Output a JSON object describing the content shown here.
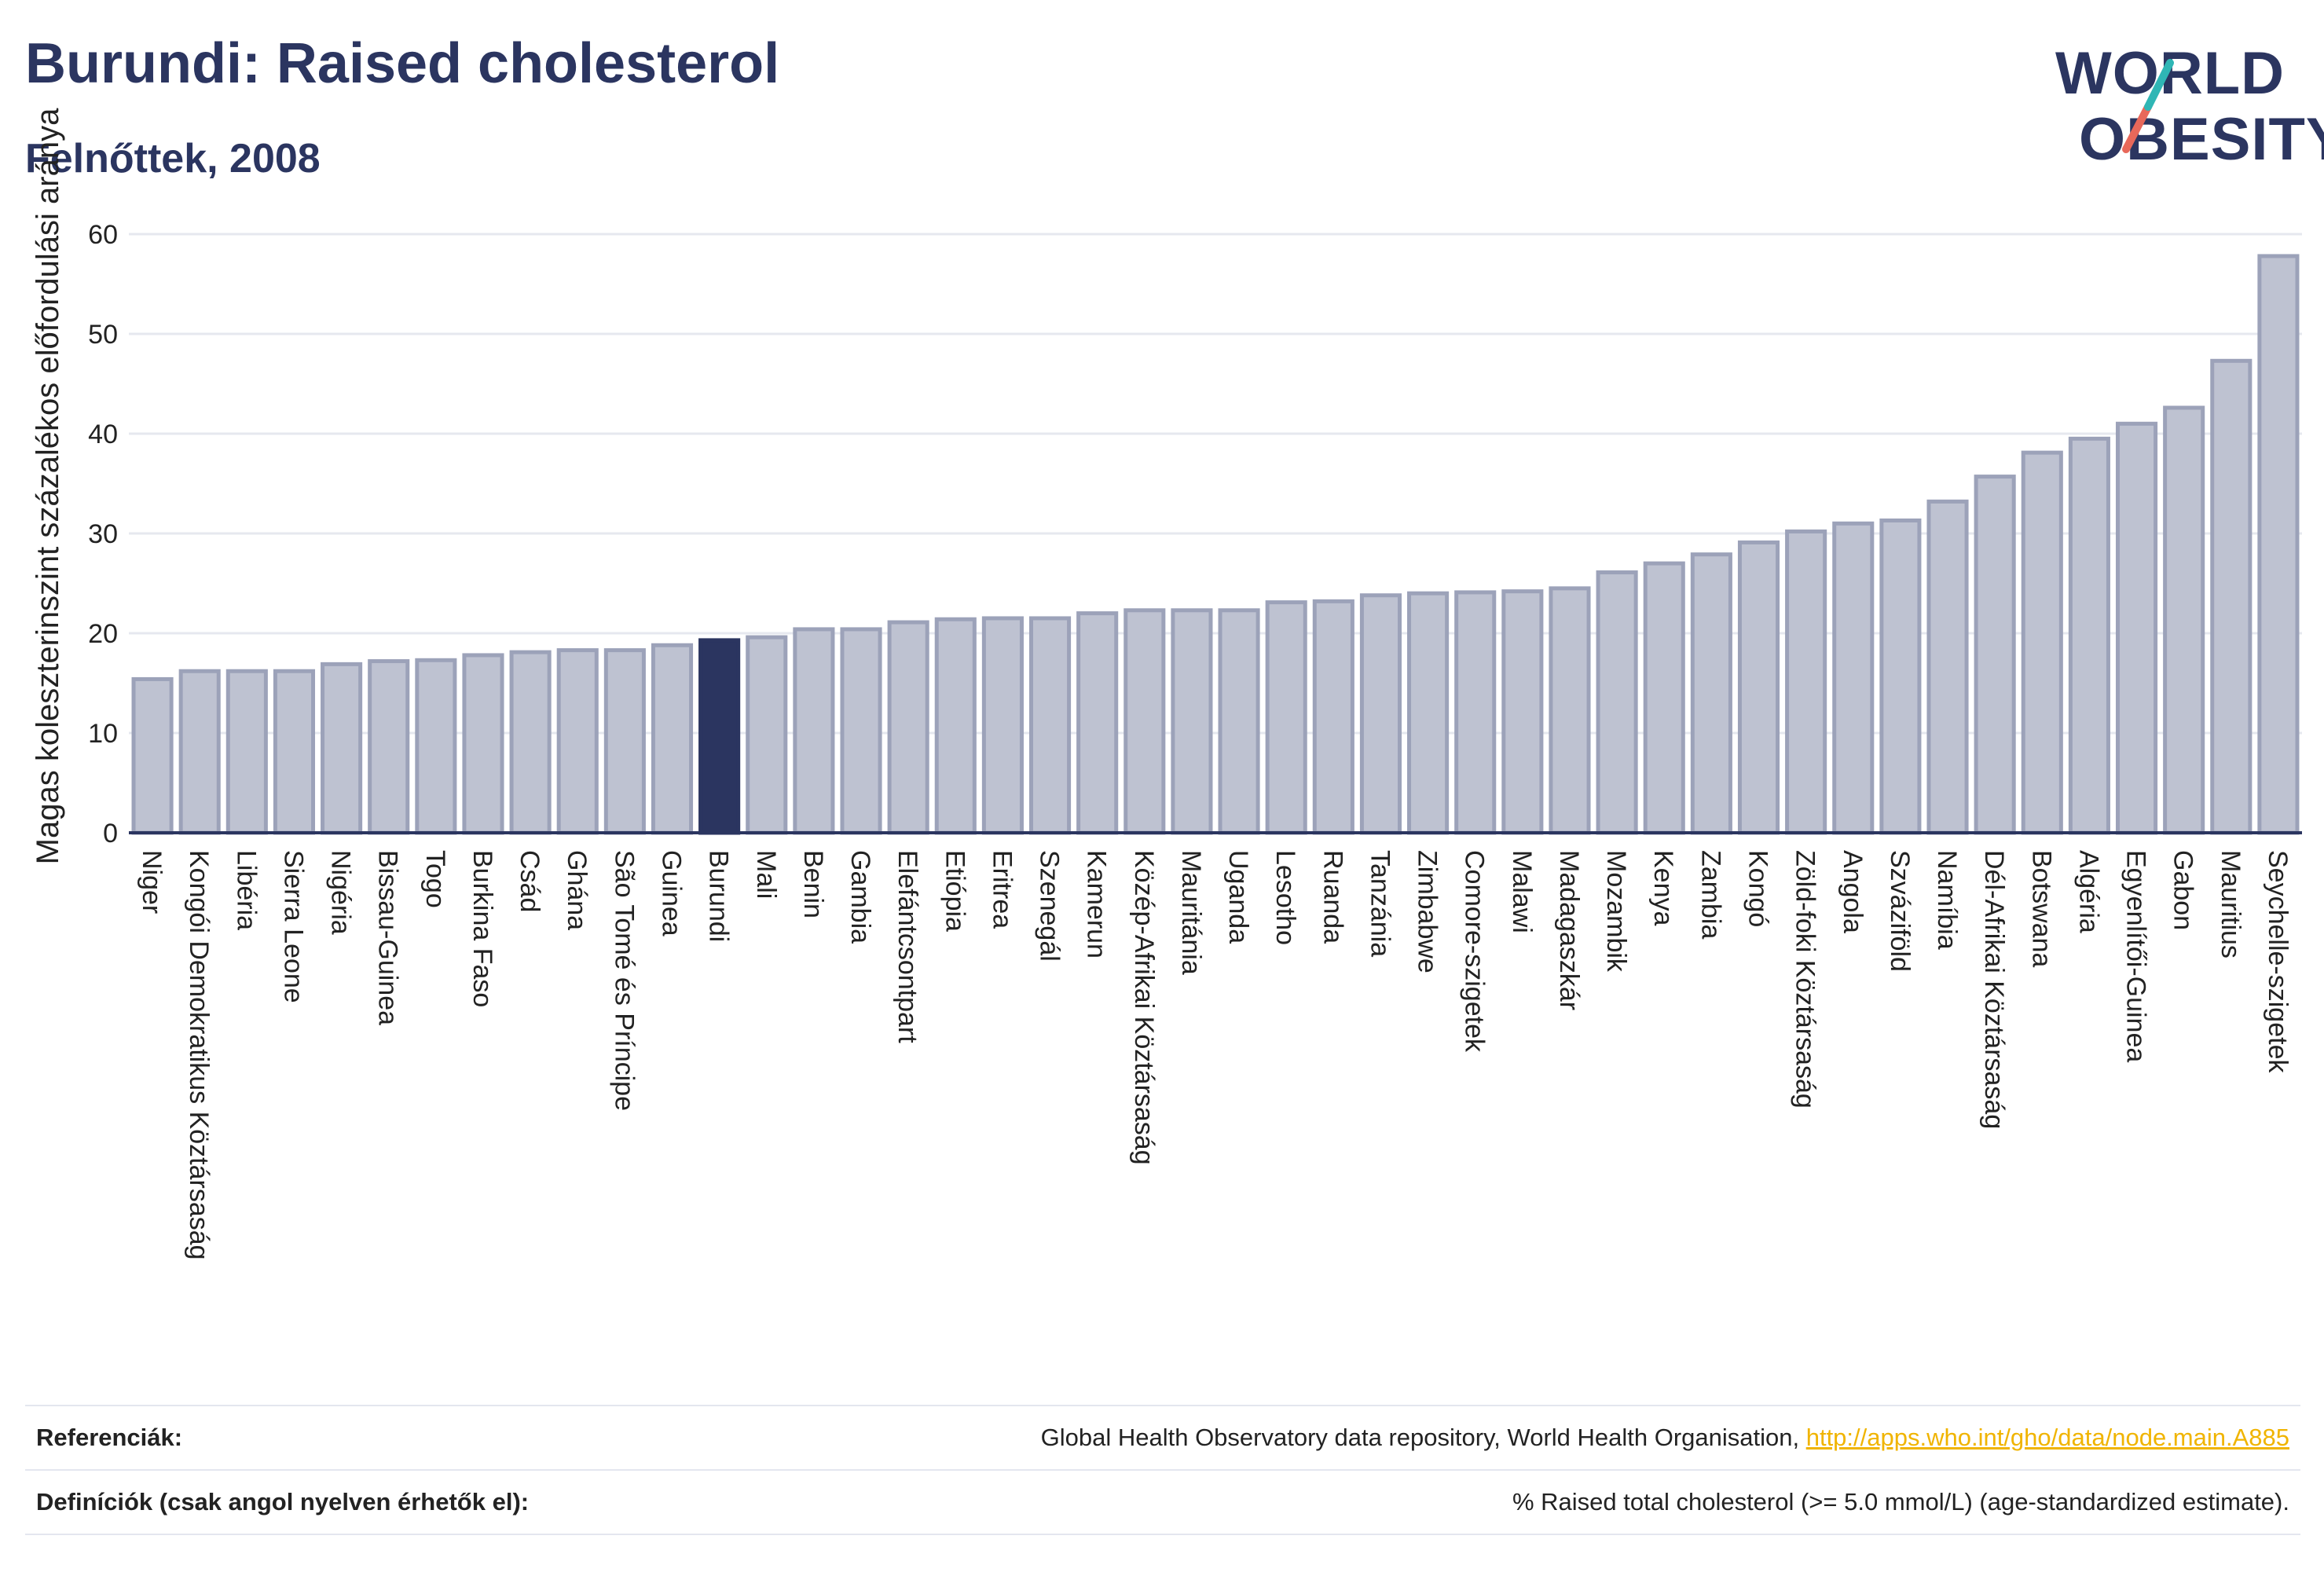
{
  "header": {
    "title": "Burundi: Raised cholesterol",
    "subtitle": "Felnőttek, 2008"
  },
  "logo": {
    "line1": "WORLD",
    "line2": "OBESITY",
    "accent_colors": [
      "#2fb6b5",
      "#e8685a"
    ]
  },
  "colors": {
    "bar": "#bec2d1",
    "bar_stroke": "#9ca2b9",
    "highlight": "#2b3560",
    "grid": "#e6e8ef",
    "text": "#2b3560"
  },
  "chart_data": {
    "type": "bar",
    "title": "Burundi: Raised cholesterol",
    "subtitle": "Felnőttek, 2008",
    "ylabel": "Magas koleszterinszint százalékos előfordulási aránya",
    "xlabel": "",
    "ylim": [
      0,
      60
    ],
    "yticks": [
      0,
      10,
      20,
      30,
      40,
      50,
      60
    ],
    "grid": true,
    "highlight": "Burundi",
    "categories": [
      "Niger",
      "Kongói Demokratikus Köztársaság",
      "Libéria",
      "Sierra Leone",
      "Nigéria",
      "Bissau-Guinea",
      "Togo",
      "Burkina Faso",
      "Csád",
      "Ghána",
      "São Tomé és Príncipe",
      "Guinea",
      "Burundi",
      "Mali",
      "Benin",
      "Gambia",
      "Elefántcsontpart",
      "Etiópia",
      "Eritrea",
      "Szenegál",
      "Kamerun",
      "Közép-Afrikai Köztársaság",
      "Mauritánia",
      "Uganda",
      "Lesotho",
      "Ruanda",
      "Tanzánia",
      "Zimbabwe",
      "Comore-szigetek",
      "Malawi",
      "Madagaszkár",
      "Mozambik",
      "Kenya",
      "Zambia",
      "Kongó",
      "Zöld-foki Köztársaság",
      "Angola",
      "Szváziföld",
      "Namíbia",
      "Dél-Afrikai Köztársaság",
      "Botswana",
      "Algéria",
      "Egyenlítői-Guinea",
      "Gabon",
      "Mauritius",
      "Seychelle-szigetek"
    ],
    "values": [
      15.4,
      16.2,
      16.2,
      16.2,
      16.9,
      17.2,
      17.3,
      17.8,
      18.1,
      18.3,
      18.3,
      18.8,
      19.3,
      19.6,
      20.4,
      20.4,
      21.1,
      21.4,
      21.5,
      21.5,
      22.0,
      22.3,
      22.3,
      22.3,
      23.1,
      23.2,
      23.8,
      24.0,
      24.1,
      24.2,
      24.5,
      26.1,
      27.0,
      27.9,
      29.1,
      30.2,
      31.0,
      31.3,
      33.2,
      35.7,
      38.1,
      39.5,
      41.0,
      42.6,
      47.3,
      57.8
    ]
  },
  "footer": {
    "ref_label": "Referenciák:",
    "ref_text": "Global Health Observatory data repository, World Health Organisation, ",
    "ref_link": "http://apps.who.int/gho/data/node.main.A885",
    "def_label": "Definíciók (csak angol nyelven érhetők el):",
    "def_text": "% Raised total cholesterol (>= 5.0 mmol/L) (age-standardized estimate)."
  }
}
